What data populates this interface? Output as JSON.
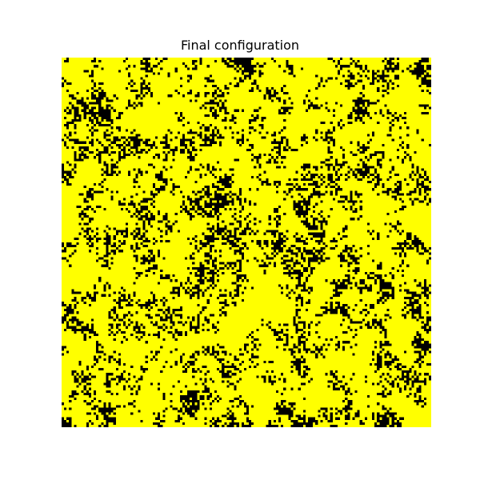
{
  "chart_data": {
    "type": "heatmap",
    "title": "Final configuration",
    "xlabel": "",
    "ylabel": "",
    "axes_visible": false,
    "grid": false,
    "legend": "none",
    "grid_size": [
      150,
      150
    ],
    "states": [
      {
        "value": 1,
        "color": "#ffff00"
      },
      {
        "value": -1,
        "color": "#000000"
      }
    ],
    "fraction_up": 0.78,
    "cluster_seed": 20240513
  }
}
